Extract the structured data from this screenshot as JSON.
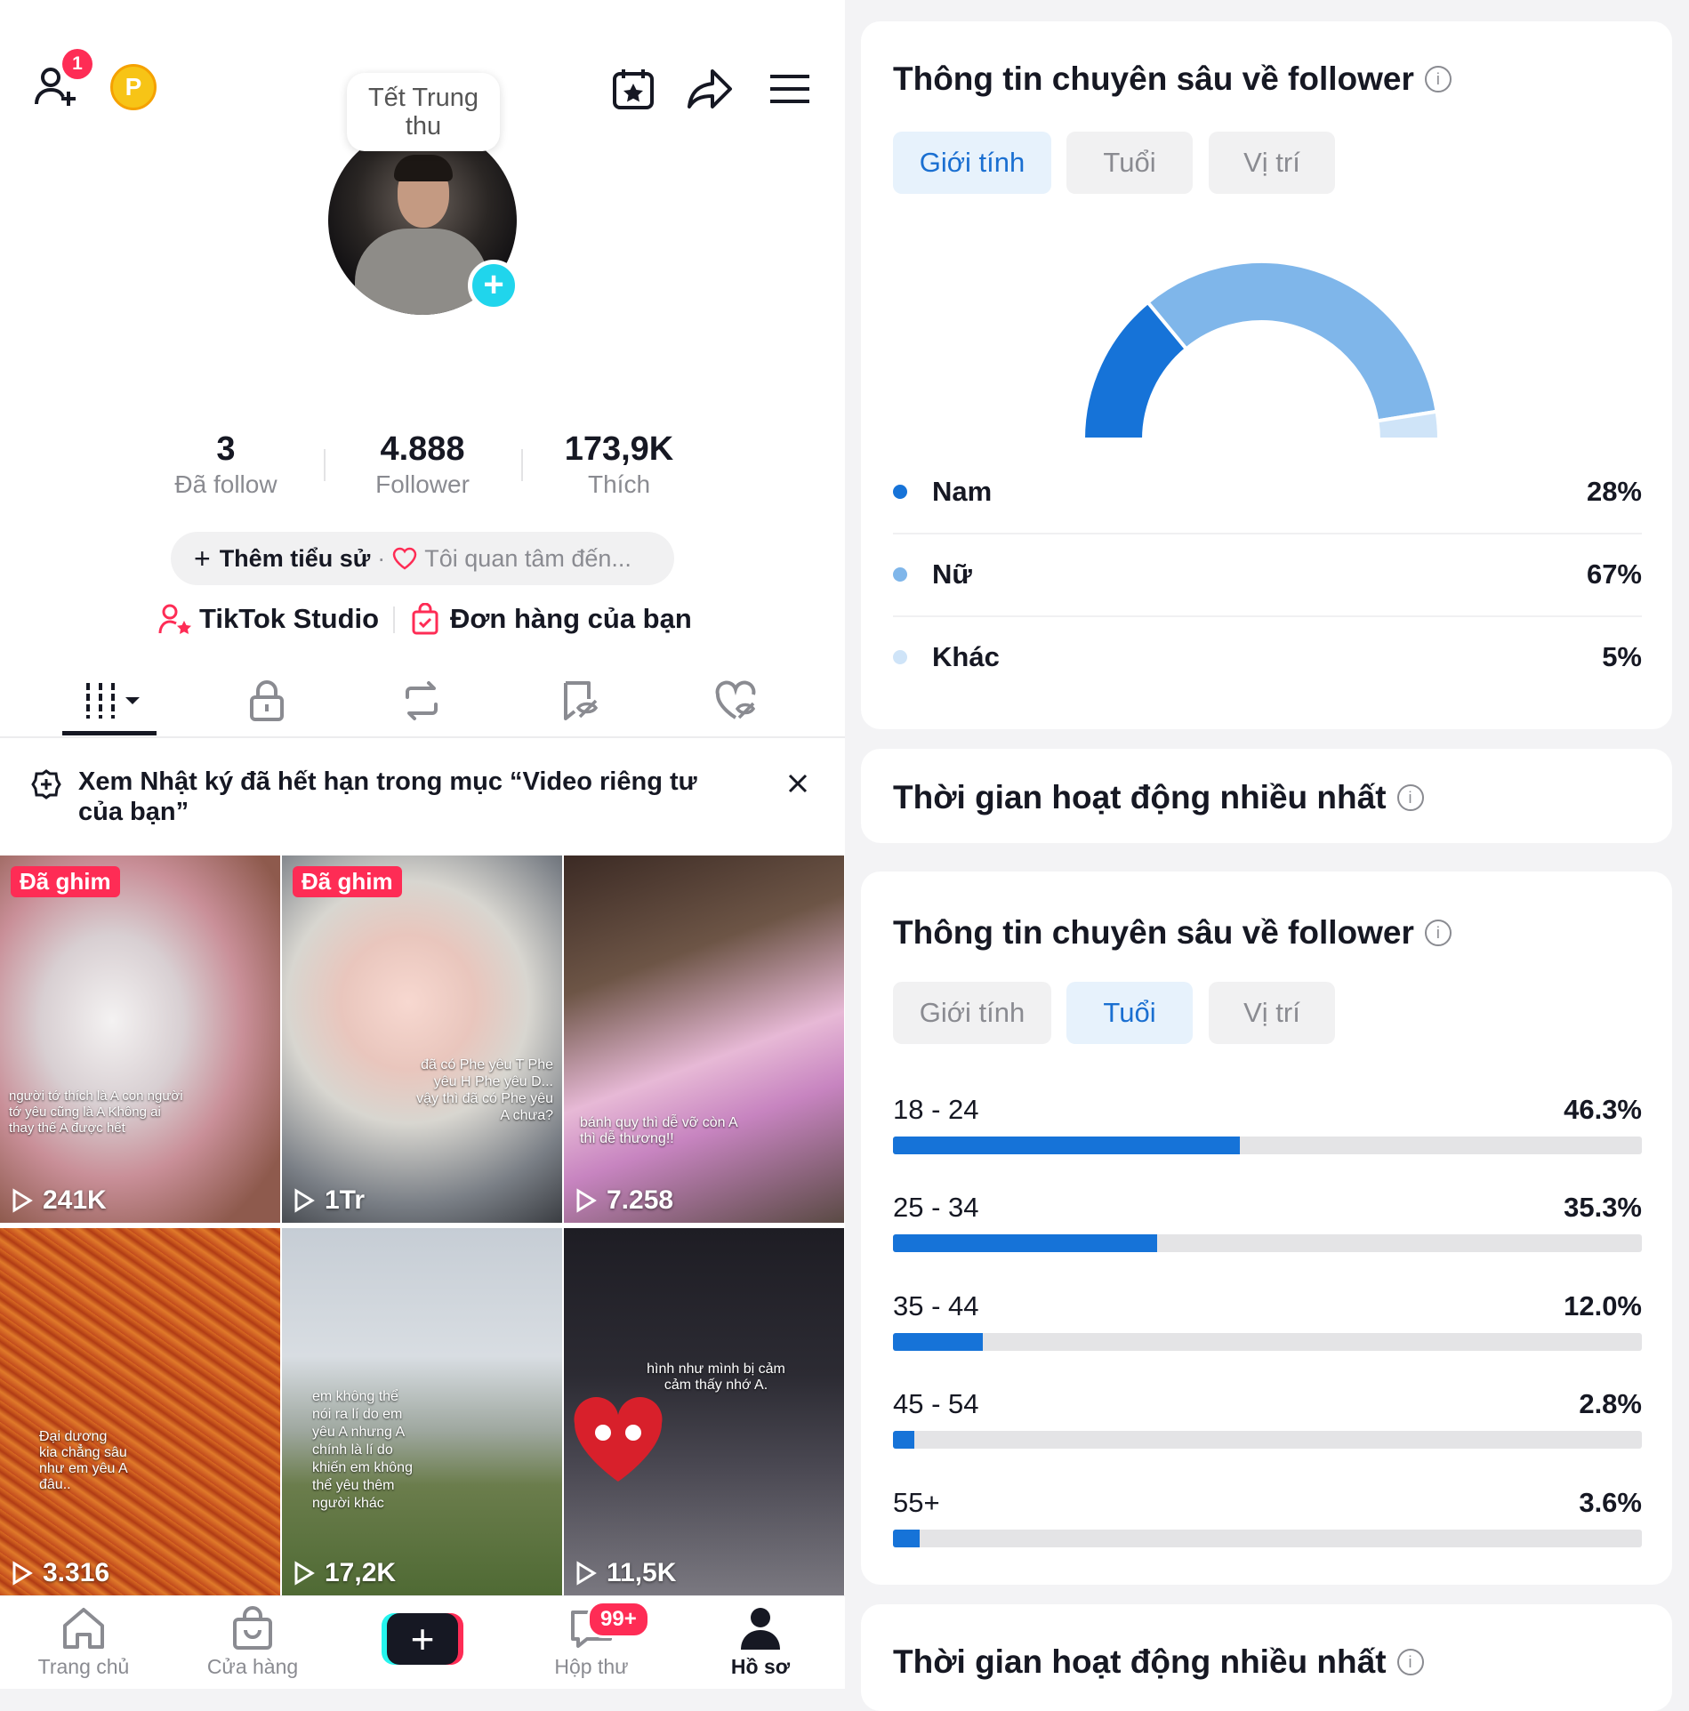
{
  "profile": {
    "notif_count": "1",
    "coin_label": "P",
    "story_bubble": "Tết Trung thu",
    "stats": [
      {
        "value": "3",
        "label": "Đã follow"
      },
      {
        "value": "4.888",
        "label": "Follower"
      },
      {
        "value": "173,9K",
        "label": "Thích"
      }
    ],
    "bio_add": "Thêm tiểu sử",
    "bio_separator": "·",
    "bio_interest": "Tôi quan tâm đến...",
    "link_studio": "TikTok Studio",
    "link_orders": "Đơn hàng của bạn",
    "banner_text": "Xem Nhật ký đã hết hạn trong mục “Video riêng tư của bạn”"
  },
  "videos": [
    {
      "pinned": "Đã ghim",
      "views": "241K",
      "caption": "người tớ thích là A con người tớ yêu cũng là A Không ai thay thế A được hết"
    },
    {
      "pinned": "Đã ghim",
      "views": "1Tr",
      "caption": "đã có Phe yêu T Phe yêu H Phe yêu D... vậy thì đã có Phe yêu A chưa?"
    },
    {
      "pinned": "",
      "views": "7.258",
      "caption": "bánh quy thì dễ vỡ còn A thì dễ thương!!"
    },
    {
      "pinned": "",
      "views": "3.316",
      "caption": "Đại dương kia chẳng sâu như em yêu A đâu.."
    },
    {
      "pinned": "",
      "views": "17,2K",
      "caption": "em không thể nói ra lí do em yêu A nhưng A chính là lí do khiến em không thể yêu thêm người khác"
    },
    {
      "pinned": "",
      "views": "11,5K",
      "caption": "hình như mình bị cảm cảm thấy nhớ A."
    }
  ],
  "nav": {
    "home": "Trang chủ",
    "shop": "Cửa hàng",
    "inbox": "Hộp thư",
    "inbox_badge": "99+",
    "profile": "Hồ sơ"
  },
  "insights": {
    "title": "Thông tin chuyên sâu về follower",
    "info_glyph": "i",
    "tabs": [
      "Giới tính",
      "Tuổi",
      "Vị trí"
    ],
    "gender": [
      {
        "name": "Nam",
        "pct": "28%",
        "value": 28,
        "color": "#1673d8"
      },
      {
        "name": "Nữ",
        "pct": "67%",
        "value": 67,
        "color": "#7fb6ea"
      },
      {
        "name": "Khác",
        "pct": "5%",
        "value": 5,
        "color": "#cfe4f8"
      }
    ],
    "age": [
      {
        "range": "18 - 24",
        "pct": "46.3%",
        "value": 46.3
      },
      {
        "range": "25 - 34",
        "pct": "35.3%",
        "value": 35.3
      },
      {
        "range": "35 - 44",
        "pct": "12.0%",
        "value": 12.0
      },
      {
        "range": "45 - 54",
        "pct": "2.8%",
        "value": 2.8
      },
      {
        "range": "55+",
        "pct": "3.6%",
        "value": 3.6
      }
    ],
    "activity_title": "Thời gian hoạt động nhiều nhất"
  }
}
